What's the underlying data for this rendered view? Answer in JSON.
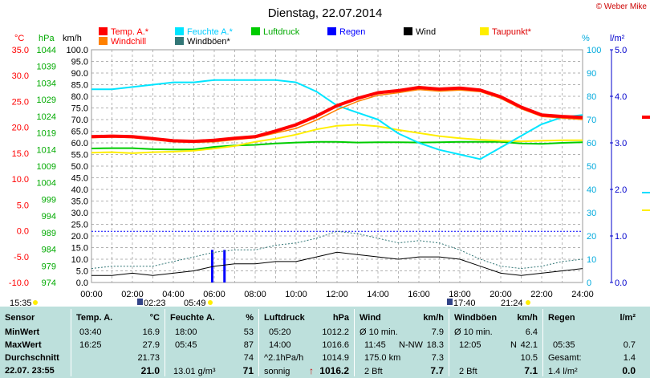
{
  "title": "Dienstag, 22.07.2014",
  "copyright": "© Weber Mike",
  "legend": [
    {
      "label": "Temp. A.*",
      "color": "#ff0000"
    },
    {
      "label": "Feuchte A.*",
      "color": "#00e5ff"
    },
    {
      "label": "Luftdruck",
      "color": "#00cc00"
    },
    {
      "label": "Regen",
      "color": "#0000ff"
    },
    {
      "label": "Wind",
      "color": "#000000"
    },
    {
      "label": "Taupunkt*",
      "color": "#ffee00"
    },
    {
      "label": "Windchill",
      "color": "#ff8000"
    },
    {
      "label": "Windböen*",
      "color": "#337777"
    }
  ],
  "units": {
    "temp": "°C",
    "press": "hPa",
    "wind": "km/h",
    "hum": "%",
    "rain": "l/m²"
  },
  "times": {
    "start": "15:35",
    "sun1": "02:23",
    "sun2": "05:49",
    "sun3": "17:40",
    "sun4": "21:24"
  },
  "chart_data": {
    "type": "line",
    "x_unit": "hour of day",
    "x": [
      0,
      1,
      2,
      3,
      4,
      5,
      6,
      7,
      8,
      9,
      10,
      11,
      12,
      13,
      14,
      15,
      16,
      17,
      18,
      19,
      20,
      21,
      22,
      23,
      24
    ],
    "xlim": [
      0,
      24
    ],
    "x_ticks": [
      "00:00",
      "02:00",
      "04:00",
      "06:00",
      "08:00",
      "10:00",
      "12:00",
      "14:00",
      "16:00",
      "18:00",
      "20:00",
      "22:00",
      "24:00"
    ],
    "axes": {
      "temp": {
        "label": "°C",
        "range": [
          -10,
          35
        ],
        "ticks": [
          "35.0",
          "30.0",
          "25.0",
          "20.0",
          "15.0",
          "10.0",
          "5.0",
          "0.0",
          "-5.0",
          "-10.0"
        ]
      },
      "press": {
        "label": "hPa",
        "range": [
          974,
          1044
        ],
        "ticks": [
          "1044",
          "1039",
          "1034",
          "1029",
          "1024",
          "1019",
          "1014",
          "1009",
          "1004",
          "999",
          "994",
          "989",
          "984",
          "979",
          "974"
        ]
      },
      "wind": {
        "label": "km/h",
        "range": [
          0,
          100
        ],
        "ticks": [
          "100.0",
          "95.0",
          "90.0",
          "85.0",
          "80.0",
          "75.0",
          "70.0",
          "65.0",
          "60.0",
          "55.0",
          "50.0",
          "45.0",
          "40.0",
          "35.0",
          "30.0",
          "25.0",
          "20.0",
          "15.0",
          "10.0",
          "5.0",
          "0.0"
        ]
      },
      "hum": {
        "label": "%",
        "range": [
          0,
          100
        ],
        "ticks": [
          "100",
          "90",
          "80",
          "70",
          "60",
          "50",
          "40",
          "30",
          "20",
          "10",
          "0"
        ]
      },
      "rain": {
        "label": "l/m²",
        "range": [
          0,
          5
        ],
        "ticks": [
          "5.0",
          "4.0",
          "3.0",
          "2.0",
          "1.0",
          "0.0"
        ]
      }
    },
    "series": [
      {
        "name": "Temp. A.*",
        "axis": "temp",
        "color": "#ff0000",
        "values": [
          18.2,
          18.3,
          18.2,
          17.8,
          17.4,
          17.3,
          17.5,
          17.9,
          18.2,
          19.3,
          20.5,
          22.2,
          24.2,
          25.6,
          26.7,
          27.1,
          27.7,
          27.4,
          27.6,
          27.2,
          25.9,
          23.9,
          22.4,
          22.1,
          21.9
        ]
      },
      {
        "name": "Windchill",
        "axis": "temp",
        "color": "#ff8000",
        "values": [
          18.0,
          18.1,
          18.0,
          17.6,
          17.2,
          17.1,
          17.2,
          17.6,
          18.0,
          18.9,
          19.8,
          21.4,
          23.4,
          25.0,
          26.2,
          26.7,
          27.3,
          27.0,
          27.2,
          26.9,
          25.6,
          23.6,
          22.1,
          21.8,
          21.5
        ]
      },
      {
        "name": "Feuchte A.*",
        "axis": "hum",
        "color": "#00e5ff",
        "values": [
          83,
          83,
          84,
          85,
          86,
          86,
          87,
          87,
          87,
          87,
          86,
          82,
          76,
          73,
          70,
          64,
          60,
          57,
          55,
          53,
          58,
          63,
          68,
          71,
          72
        ]
      },
      {
        "name": "Taupunkt*",
        "axis": "temp",
        "color": "#ffee00",
        "values": [
          15.1,
          15.2,
          15.0,
          15.2,
          15.3,
          15.5,
          15.9,
          16.4,
          17.2,
          17.8,
          18.6,
          19.6,
          20.3,
          20.5,
          20.2,
          19.5,
          18.9,
          18.3,
          17.9,
          17.6,
          17.4,
          17.3,
          17.4,
          17.5,
          17.5
        ]
      },
      {
        "name": "Luftdruck",
        "axis": "press",
        "color": "#00cc00",
        "values": [
          1014.3,
          1014.4,
          1014.4,
          1014.1,
          1014.0,
          1014.0,
          1014.8,
          1015.2,
          1015.4,
          1015.8,
          1016.1,
          1016.3,
          1016.3,
          1016.1,
          1016.2,
          1016.2,
          1016.1,
          1016.2,
          1016.3,
          1016.3,
          1016.3,
          1015.8,
          1015.7,
          1016.0,
          1016.2
        ]
      },
      {
        "name": "Wind",
        "axis": "wind",
        "color": "#000000",
        "values": [
          3,
          3,
          4,
          3,
          4,
          5,
          7,
          8,
          8,
          9,
          9,
          11,
          13,
          12,
          11,
          10,
          11,
          11,
          10,
          7,
          4,
          3,
          4,
          5,
          6
        ]
      },
      {
        "name": "Windböen*",
        "axis": "wind",
        "color": "#337777",
        "values": [
          6,
          7,
          7,
          7,
          9,
          11,
          13,
          14,
          14,
          16,
          17,
          19,
          22,
          21,
          19,
          17,
          18,
          17,
          14,
          10,
          7,
          6,
          7,
          9,
          10
        ]
      }
    ],
    "rain_bars": [
      {
        "x": 5.9,
        "value": 0.7
      },
      {
        "x": 6.5,
        "value": 0.7
      }
    ],
    "rain_level_line": 1.1
  },
  "table": {
    "rows": [
      "Sensor",
      "MinWert",
      "MaxWert",
      "Durchschnitt",
      "22.07. 23:55"
    ],
    "temp": {
      "head": "Temp. A.",
      "unit": "°C",
      "min_t": "03:40",
      "min_v": "16.9",
      "max_t": "16:25",
      "max_v": "27.9",
      "avg": "21.73",
      "cur": "21.0"
    },
    "hum": {
      "head": "Feuchte A.",
      "unit": "%",
      "min_t": "18:00",
      "min_v": "53",
      "max_t": "05:45",
      "max_v": "87",
      "avg": "74",
      "abs": "13.01 g/m³",
      "cur": "71"
    },
    "press": {
      "head": "Luftdruck",
      "unit": "hPa",
      "min_t": "05:20",
      "min_v": "1012.2",
      "max_t": "14:00",
      "max_v": "1016.6",
      "trend_l": "^2.1hPa/h",
      "trend_v": "1014.9",
      "forecast": "sonnig",
      "arrow": "↑",
      "cur": "1016.2"
    },
    "wind": {
      "head": "Wind",
      "unit": "km/h",
      "r1l": "Ø 10 min.",
      "r1v": "7.9",
      "r2t": "11:45",
      "r2d": "N-NW",
      "r2v": "18.3",
      "r3l": "175.0 km",
      "r3v": "7.3",
      "bft": "2 Bft",
      "cur": "7.7"
    },
    "gust": {
      "head": "Windböen",
      "unit": "km/h",
      "r1l": "Ø 10 min.",
      "r1v": "6.4",
      "r2t": "12:05",
      "r2d": "N",
      "r2v": "42.1",
      "r3v": "10.5",
      "bft": "2 Bft",
      "cur": "7.1"
    },
    "rain": {
      "head": "Regen",
      "unit": "l/m²",
      "r2t": "05:35",
      "r2v": "0.7",
      "r3l": "Gesamt:",
      "r3v": "1.4",
      "r4l": "1.4 l/m²",
      "cur": "0.0"
    }
  }
}
